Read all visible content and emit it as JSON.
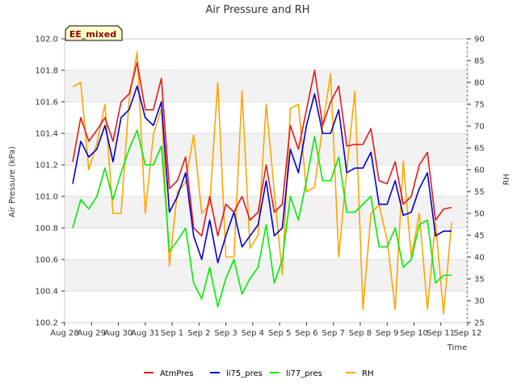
{
  "chart_data": {
    "type": "line",
    "title": "Air Pressure and RH",
    "xlabel": "Time",
    "ylabel": "Air Pressure (kPa)",
    "y2label": "RH",
    "annotation": "EE_mixed",
    "grid": true,
    "legend_position": "bottom",
    "x_ticks": [
      "Aug 28",
      "Aug 29",
      "Aug 30",
      "Aug 31",
      "Sep 1",
      "Sep 2",
      "Sep 3",
      "Sep 4",
      "Sep 5",
      "Sep 6",
      "Sep 7",
      "Sep 8",
      "Sep 9",
      "Sep 10",
      "Sep 11",
      "Sep 12"
    ],
    "xlim": [
      0,
      15
    ],
    "ylim": [
      100.2,
      102.0
    ],
    "y_ticks": [
      "100.2",
      "100.4",
      "100.6",
      "100.8",
      "101.0",
      "101.2",
      "101.4",
      "101.6",
      "101.8",
      "102.0"
    ],
    "y2lim": [
      25,
      90
    ],
    "y2_ticks": [
      "25",
      "30",
      "35",
      "40",
      "45",
      "50",
      "55",
      "60",
      "65",
      "70",
      "75",
      "80",
      "85",
      "90"
    ],
    "x": [
      0.3,
      0.6,
      0.9,
      1.2,
      1.5,
      1.8,
      2.1,
      2.4,
      2.7,
      3.0,
      3.3,
      3.6,
      3.9,
      4.2,
      4.5,
      4.8,
      5.1,
      5.4,
      5.7,
      6.0,
      6.3,
      6.6,
      6.9,
      7.2,
      7.5,
      7.8,
      8.1,
      8.4,
      8.7,
      9.0,
      9.3,
      9.6,
      9.9,
      10.2,
      10.5,
      10.8,
      11.1,
      11.4,
      11.7,
      12.0,
      12.3,
      12.6,
      12.9,
      13.2,
      13.5,
      13.8,
      14.1,
      14.4
    ],
    "series": [
      {
        "name": "AtmPres",
        "axis": "left",
        "color": "#e41a1c",
        "values": [
          101.22,
          101.5,
          101.35,
          101.42,
          101.5,
          101.35,
          101.6,
          101.65,
          101.85,
          101.55,
          101.55,
          101.75,
          101.05,
          101.1,
          101.25,
          100.8,
          100.75,
          101.0,
          100.75,
          100.95,
          100.9,
          101.0,
          100.85,
          100.9,
          101.2,
          100.9,
          100.95,
          101.45,
          101.3,
          101.55,
          101.8,
          101.45,
          101.6,
          101.7,
          101.32,
          101.33,
          101.33,
          101.43,
          101.1,
          101.08,
          101.22,
          100.95,
          101.0,
          101.2,
          101.28,
          100.85,
          100.92,
          100.93
        ]
      },
      {
        "name": "li75_pres",
        "axis": "left",
        "color": "#0000cd",
        "values": [
          101.08,
          101.35,
          101.25,
          101.3,
          101.45,
          101.22,
          101.5,
          101.55,
          101.7,
          101.5,
          101.45,
          101.6,
          100.9,
          101.0,
          101.15,
          100.75,
          100.6,
          100.85,
          100.58,
          100.75,
          100.9,
          100.68,
          100.75,
          100.82,
          101.1,
          100.75,
          100.8,
          101.3,
          101.15,
          101.45,
          101.65,
          101.4,
          101.4,
          101.55,
          101.15,
          101.18,
          101.18,
          101.28,
          100.95,
          100.95,
          101.1,
          100.88,
          100.9,
          101.05,
          101.15,
          100.75,
          100.78,
          100.78
        ]
      },
      {
        "name": "li77_pres",
        "axis": "left",
        "color": "#00ee00",
        "values": [
          100.8,
          100.98,
          100.92,
          101.0,
          101.18,
          100.98,
          101.15,
          101.3,
          101.42,
          101.2,
          101.2,
          101.32,
          100.65,
          100.72,
          100.8,
          100.45,
          100.35,
          100.55,
          100.3,
          100.48,
          100.6,
          100.38,
          100.48,
          100.55,
          100.82,
          100.45,
          100.6,
          101.0,
          100.85,
          101.1,
          101.38,
          101.1,
          101.1,
          101.25,
          100.9,
          100.9,
          100.95,
          101.0,
          100.68,
          100.68,
          100.8,
          100.55,
          100.6,
          100.82,
          100.85,
          100.45,
          100.5,
          100.5
        ]
      },
      {
        "name": "RH",
        "axis": "right",
        "color": "#ffa500",
        "values": [
          79,
          80,
          60,
          66,
          75,
          50,
          50,
          76,
          87,
          50,
          68,
          74,
          38,
          55,
          57,
          68,
          50,
          52,
          80,
          40,
          40,
          78,
          42,
          45,
          75,
          55,
          36,
          74,
          75,
          55,
          56,
          70,
          82,
          40,
          60,
          78,
          28,
          50,
          52,
          44,
          28,
          62,
          40,
          50,
          28,
          48,
          27,
          48
        ]
      }
    ]
  }
}
